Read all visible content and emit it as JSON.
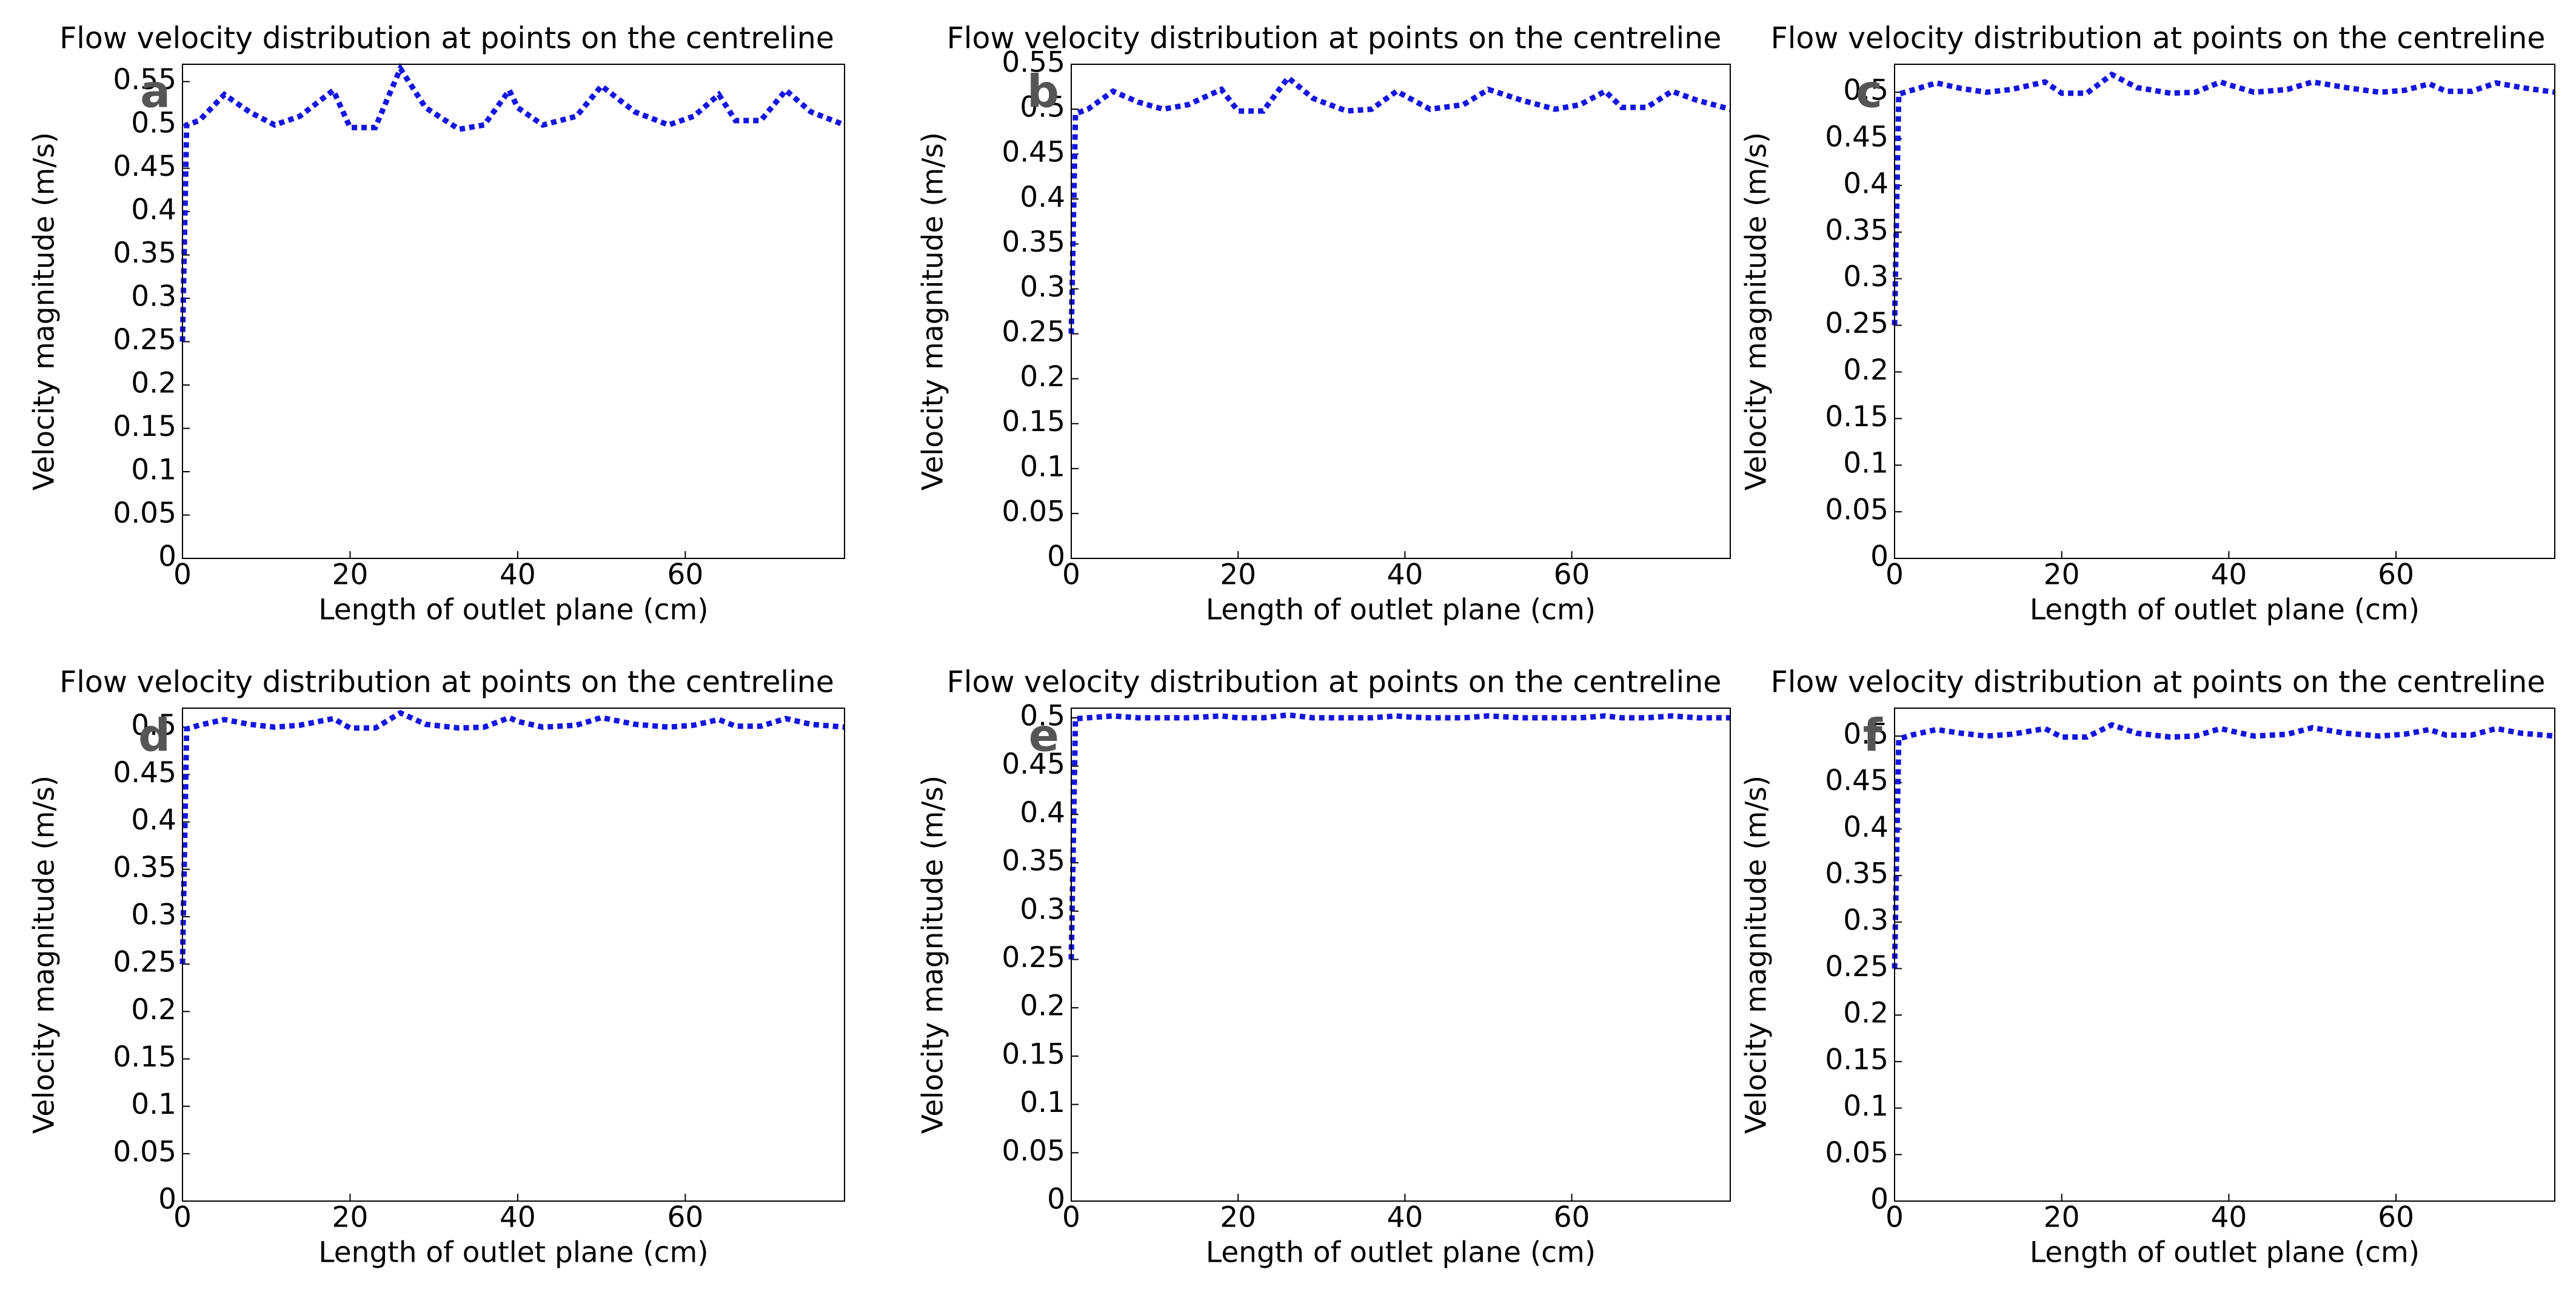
{
  "chart_data": [
    {
      "type": "line",
      "panel_label": "a",
      "title": "Flow velocity distribution at points on the centreline",
      "x_label": "Length of outlet plane (cm)",
      "y_label": "Velocity magnitude (m/s)",
      "color": "#1515e0",
      "x": [
        0,
        0.5,
        2,
        5,
        8,
        11,
        14,
        18,
        20,
        23,
        26,
        29,
        33,
        36,
        39,
        40,
        43,
        47,
        50,
        54,
        58,
        61,
        64,
        66,
        69,
        72,
        75,
        79
      ],
      "values": [
        0.25,
        0.5,
        0.505,
        0.535,
        0.515,
        0.5,
        0.51,
        0.54,
        0.497,
        0.497,
        0.565,
        0.52,
        0.495,
        0.5,
        0.54,
        0.52,
        0.5,
        0.51,
        0.545,
        0.515,
        0.5,
        0.51,
        0.535,
        0.505,
        0.505,
        0.54,
        0.515,
        0.5
      ],
      "xlim": [
        0,
        79
      ],
      "xticks": [
        0,
        20,
        40,
        60
      ],
      "ylim": [
        0,
        0.57
      ],
      "yticks": [
        0,
        0.05,
        0.1,
        0.15,
        0.2,
        0.25,
        0.3,
        0.35,
        0.4,
        0.45,
        0.5,
        0.55
      ]
    },
    {
      "type": "line",
      "panel_label": "b",
      "title": "Flow velocity distribution at points on the centreline",
      "x_label": "Length of outlet plane (cm)",
      "y_label": "Velocity magnitude (m/s)",
      "color": "#1515e0",
      "x": [
        0,
        0.5,
        2,
        5,
        8,
        11,
        14,
        18,
        20,
        23,
        26,
        29,
        33,
        36,
        39,
        40,
        43,
        47,
        50,
        54,
        58,
        61,
        64,
        66,
        69,
        72,
        75,
        79
      ],
      "values": [
        0.25,
        0.495,
        0.5,
        0.52,
        0.508,
        0.5,
        0.505,
        0.522,
        0.498,
        0.498,
        0.535,
        0.512,
        0.498,
        0.5,
        0.52,
        0.515,
        0.5,
        0.505,
        0.522,
        0.51,
        0.5,
        0.505,
        0.52,
        0.502,
        0.502,
        0.52,
        0.51,
        0.5
      ],
      "xlim": [
        0,
        79
      ],
      "xticks": [
        0,
        20,
        40,
        60
      ],
      "ylim": [
        0,
        0.55
      ],
      "yticks": [
        0,
        0.05,
        0.1,
        0.15,
        0.2,
        0.25,
        0.3,
        0.35,
        0.4,
        0.45,
        0.5,
        0.55
      ]
    },
    {
      "type": "line",
      "panel_label": "c",
      "title": "Flow velocity distribution at points on the centreline",
      "x_label": "Length of outlet plane (cm)",
      "y_label": "Velocity magnitude (m/s)",
      "color": "#1515e0",
      "x": [
        0,
        0.5,
        2,
        5,
        8,
        11,
        14,
        18,
        20,
        23,
        26,
        29,
        33,
        36,
        39,
        40,
        43,
        47,
        50,
        54,
        58,
        61,
        64,
        66,
        69,
        72,
        75,
        79
      ],
      "values": [
        0.25,
        0.498,
        0.502,
        0.51,
        0.504,
        0.5,
        0.503,
        0.511,
        0.499,
        0.499,
        0.519,
        0.505,
        0.499,
        0.5,
        0.511,
        0.508,
        0.5,
        0.503,
        0.511,
        0.505,
        0.5,
        0.502,
        0.509,
        0.501,
        0.501,
        0.51,
        0.505,
        0.5
      ],
      "xlim": [
        0,
        79
      ],
      "xticks": [
        0,
        20,
        40,
        60
      ],
      "ylim": [
        0,
        0.53
      ],
      "yticks": [
        0,
        0.05,
        0.1,
        0.15,
        0.2,
        0.25,
        0.3,
        0.35,
        0.4,
        0.45,
        0.5
      ]
    },
    {
      "type": "line",
      "panel_label": "d",
      "title": "Flow velocity distribution at points on the centreline",
      "x_label": "Length of outlet plane (cm)",
      "y_label": "Velocity magnitude (m/s)",
      "color": "#1515e0",
      "x": [
        0,
        0.5,
        2,
        5,
        8,
        11,
        14,
        18,
        20,
        23,
        26,
        29,
        33,
        36,
        39,
        40,
        43,
        47,
        50,
        54,
        58,
        61,
        64,
        66,
        69,
        72,
        75,
        79
      ],
      "values": [
        0.25,
        0.498,
        0.502,
        0.508,
        0.503,
        0.5,
        0.502,
        0.509,
        0.499,
        0.499,
        0.515,
        0.503,
        0.499,
        0.5,
        0.51,
        0.506,
        0.5,
        0.502,
        0.51,
        0.503,
        0.5,
        0.502,
        0.508,
        0.501,
        0.501,
        0.509,
        0.503,
        0.5
      ],
      "xlim": [
        0,
        79
      ],
      "xticks": [
        0,
        20,
        40,
        60
      ],
      "ylim": [
        0,
        0.52
      ],
      "yticks": [
        0,
        0.05,
        0.1,
        0.15,
        0.2,
        0.25,
        0.3,
        0.35,
        0.4,
        0.45,
        0.5
      ]
    },
    {
      "type": "line",
      "panel_label": "e",
      "title": "Flow velocity distribution at points on the centreline",
      "x_label": "Length of outlet plane (cm)",
      "y_label": "Velocity magnitude (m/s)",
      "color": "#1515e0",
      "x": [
        0,
        0.5,
        2,
        5,
        8,
        11,
        14,
        18,
        20,
        23,
        26,
        29,
        33,
        36,
        39,
        40,
        43,
        47,
        50,
        54,
        58,
        61,
        64,
        66,
        69,
        72,
        75,
        79
      ],
      "values": [
        0.25,
        0.499,
        0.5,
        0.502,
        0.5,
        0.5,
        0.5,
        0.502,
        0.5,
        0.5,
        0.503,
        0.5,
        0.5,
        0.5,
        0.502,
        0.501,
        0.5,
        0.5,
        0.502,
        0.5,
        0.5,
        0.5,
        0.502,
        0.5,
        0.5,
        0.502,
        0.5,
        0.5
      ],
      "xlim": [
        0,
        79
      ],
      "xticks": [
        0,
        20,
        40,
        60
      ],
      "ylim": [
        0,
        0.51
      ],
      "yticks": [
        0,
        0.05,
        0.1,
        0.15,
        0.2,
        0.25,
        0.3,
        0.35,
        0.4,
        0.45,
        0.5
      ]
    },
    {
      "type": "line",
      "panel_label": "f",
      "title": "Flow velocity distribution at points on the centreline",
      "x_label": "Length of outlet plane (cm)",
      "y_label": "Velocity magnitude (m/s)",
      "color": "#1515e0",
      "x": [
        0,
        0.5,
        2,
        5,
        8,
        11,
        14,
        18,
        20,
        23,
        26,
        29,
        33,
        36,
        39,
        40,
        43,
        47,
        50,
        54,
        58,
        61,
        64,
        66,
        69,
        72,
        75,
        79
      ],
      "values": [
        0.25,
        0.497,
        0.501,
        0.507,
        0.503,
        0.5,
        0.502,
        0.508,
        0.499,
        0.499,
        0.512,
        0.503,
        0.499,
        0.5,
        0.508,
        0.506,
        0.5,
        0.502,
        0.509,
        0.503,
        0.5,
        0.502,
        0.507,
        0.501,
        0.501,
        0.508,
        0.503,
        0.5
      ],
      "xlim": [
        0,
        79
      ],
      "xticks": [
        0,
        20,
        40,
        60
      ],
      "ylim": [
        0,
        0.53
      ],
      "yticks": [
        0,
        0.05,
        0.1,
        0.15,
        0.2,
        0.25,
        0.3,
        0.35,
        0.4,
        0.45,
        0.5
      ]
    }
  ]
}
